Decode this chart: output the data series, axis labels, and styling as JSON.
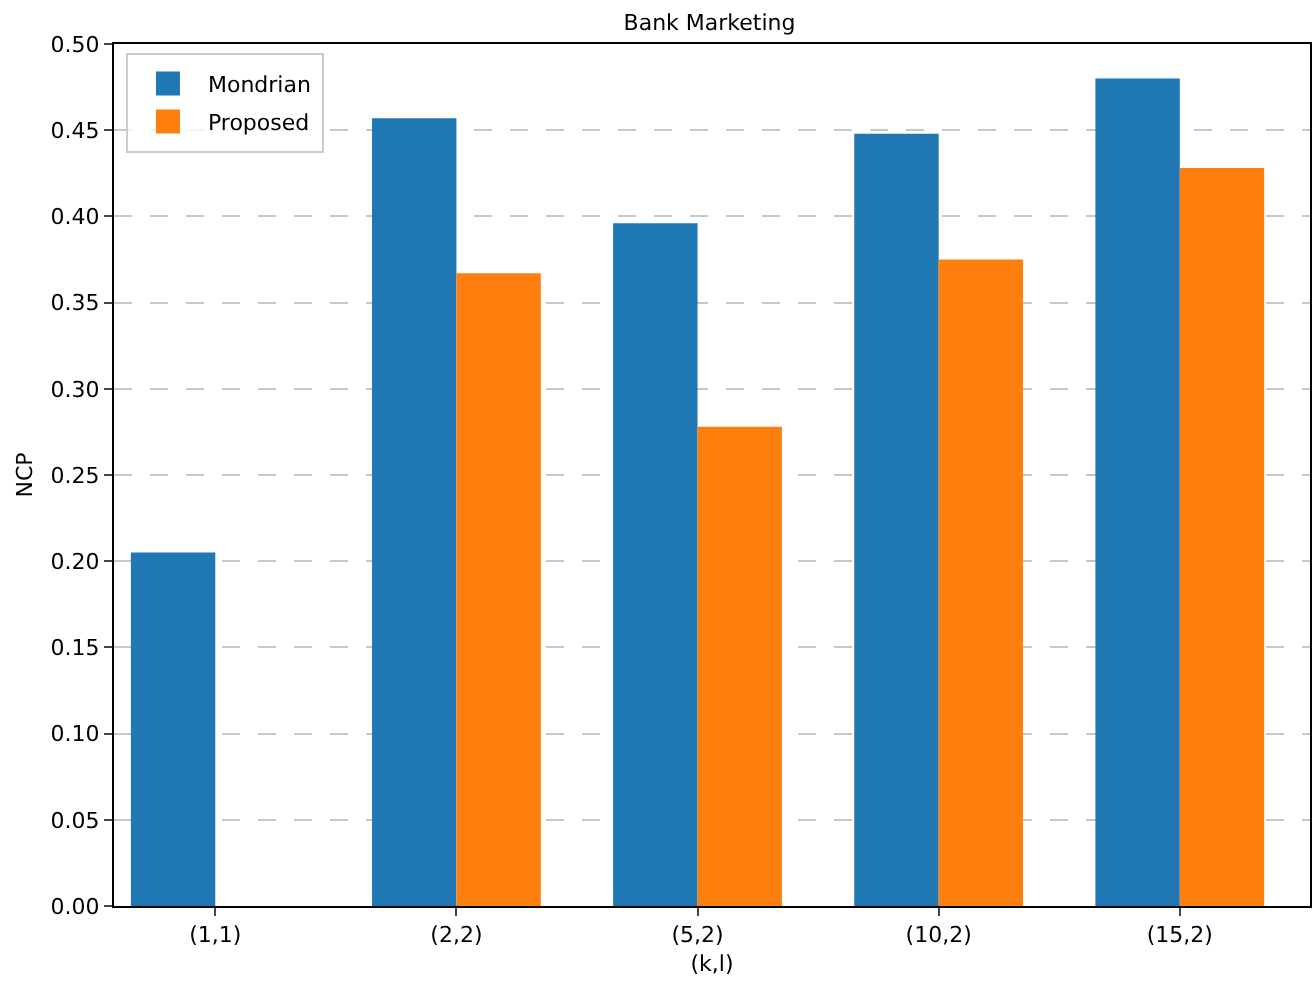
{
  "chart_data": {
    "type": "bar",
    "title": "Bank Marketing",
    "xlabel": "(k,l)",
    "ylabel": "NCP",
    "categories": [
      "(1,1)",
      "(2,2)",
      "(5,2)",
      "(10,2)",
      "(15,2)"
    ],
    "series": [
      {
        "name": "Mondrian",
        "color": "#1f77b4",
        "values": [
          0.205,
          0.457,
          0.396,
          0.448,
          0.48
        ]
      },
      {
        "name": "Proposed",
        "color": "#ff7f0e",
        "values": [
          0,
          0.367,
          0.278,
          0.375,
          0.428
        ]
      }
    ],
    "ylim": [
      0,
      0.5
    ],
    "yticks": [
      {
        "value": 0,
        "label": "0.00"
      },
      {
        "value": 0.05,
        "label": "0.05"
      },
      {
        "value": 0.1,
        "label": "0.10"
      },
      {
        "value": 0.15,
        "label": "0.15"
      },
      {
        "value": 0.2,
        "label": "0.20"
      },
      {
        "value": 0.25,
        "label": "0.25"
      },
      {
        "value": 0.3,
        "label": "0.30"
      },
      {
        "value": 0.35,
        "label": "0.35"
      },
      {
        "value": 0.4,
        "label": "0.40"
      },
      {
        "value": 0.45,
        "label": "0.45"
      },
      {
        "value": 0.5,
        "label": "0.50"
      }
    ],
    "grid": "y",
    "legend": "top left"
  }
}
